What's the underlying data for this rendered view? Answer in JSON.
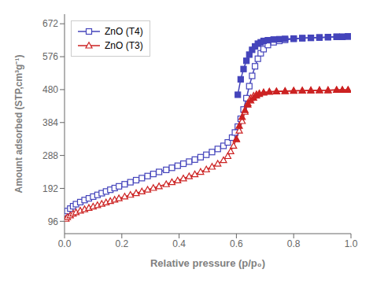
{
  "chart_data": {
    "type": "line",
    "xlabel": "Relative pressure (p/p₀)",
    "ylabel": "Amount adsorbed (STP,cm³g⁻¹)",
    "xlim": [
      0.0,
      1.0
    ],
    "ylim": [
      60,
      700
    ],
    "xticks": [
      {
        "value": 0.0,
        "label": "0.0"
      },
      0.2,
      0.4,
      0.6,
      0.8,
      {
        "value": 1.0,
        "label": "1.0"
      }
    ],
    "yticks": [
      96,
      192,
      288,
      384,
      480,
      576,
      672
    ],
    "grid": false,
    "legend": "upper left",
    "series": [
      {
        "name": "ZnO (T4)",
        "color": "#4444bb",
        "marker": "open_square",
        "line_style": "solid",
        "x": [
          0.005,
          0.01,
          0.02,
          0.03,
          0.04,
          0.055,
          0.07,
          0.085,
          0.1,
          0.115,
          0.13,
          0.145,
          0.16,
          0.175,
          0.19,
          0.21,
          0.23,
          0.25,
          0.27,
          0.29,
          0.31,
          0.33,
          0.355,
          0.375,
          0.395,
          0.415,
          0.435,
          0.455,
          0.475,
          0.495,
          0.515,
          0.535,
          0.555,
          0.57,
          0.585,
          0.595,
          0.605,
          0.615,
          0.625,
          0.635,
          0.645,
          0.655,
          0.665,
          0.675,
          0.685,
          0.695,
          0.71,
          0.73,
          0.75,
          0.77,
          0.8,
          0.83,
          0.86,
          0.89,
          0.92,
          0.95,
          0.97,
          0.99
        ],
        "values": [
          120,
          126,
          133,
          140,
          146,
          152,
          158,
          163,
          168,
          173,
          178,
          183,
          188,
          193,
          198,
          204,
          210,
          216,
          222,
          228,
          234,
          240,
          246,
          252,
          258,
          264,
          270,
          276,
          283,
          290,
          298,
          307,
          316,
          326,
          340,
          355,
          372,
          395,
          422,
          455,
          490,
          520,
          548,
          570,
          586,
          598,
          610,
          618,
          622,
          625,
          628,
          630,
          631,
          632,
          633,
          634,
          634,
          635
        ]
      },
      {
        "color": "#4444bb",
        "marker": "filled_square",
        "line_style": "solid",
        "x": [
          0.99,
          0.97,
          0.95,
          0.92,
          0.89,
          0.86,
          0.83,
          0.8,
          0.77,
          0.75,
          0.73,
          0.71,
          0.695,
          0.685,
          0.675,
          0.665,
          0.655,
          0.645,
          0.635,
          0.625,
          0.615,
          0.605
        ],
        "values": [
          635,
          634,
          634,
          633,
          632,
          631,
          630,
          629,
          628,
          627,
          626,
          624,
          622,
          618,
          614,
          606,
          596,
          582,
          564,
          540,
          510,
          465
        ]
      },
      {
        "name": "ZnO (T3)",
        "color": "#cc2222",
        "marker": "open_triangle",
        "line_style": "solid",
        "x": [
          0.005,
          0.01,
          0.02,
          0.03,
          0.04,
          0.055,
          0.07,
          0.085,
          0.1,
          0.115,
          0.13,
          0.145,
          0.16,
          0.175,
          0.19,
          0.21,
          0.23,
          0.25,
          0.27,
          0.29,
          0.31,
          0.33,
          0.355,
          0.375,
          0.395,
          0.415,
          0.435,
          0.455,
          0.475,
          0.495,
          0.515,
          0.535,
          0.555,
          0.57,
          0.58,
          0.59,
          0.6,
          0.61,
          0.62,
          0.63,
          0.64,
          0.65,
          0.66,
          0.67,
          0.68,
          0.695,
          0.715,
          0.74,
          0.77,
          0.8,
          0.83,
          0.86,
          0.89,
          0.92,
          0.95,
          0.97,
          0.99
        ],
        "values": [
          103,
          108,
          113,
          118,
          122,
          127,
          131,
          135,
          139,
          143,
          147,
          151,
          155,
          159,
          163,
          168,
          173,
          178,
          183,
          188,
          193,
          198,
          204,
          210,
          215,
          221,
          227,
          233,
          240,
          247,
          255,
          264,
          274,
          286,
          300,
          316,
          336,
          360,
          388,
          415,
          440,
          455,
          462,
          466,
          469,
          472,
          474,
          475,
          476,
          477,
          477,
          478,
          478,
          478,
          479,
          479,
          479
        ]
      },
      {
        "color": "#cc2222",
        "marker": "filled_triangle",
        "line_style": "solid",
        "x": [
          0.99,
          0.97,
          0.95,
          0.92,
          0.89,
          0.86,
          0.83,
          0.8,
          0.77,
          0.74,
          0.715,
          0.695,
          0.68,
          0.67,
          0.66,
          0.65,
          0.64,
          0.63,
          0.62,
          0.61,
          0.6
        ],
        "values": [
          479,
          479,
          479,
          478,
          478,
          477,
          477,
          476,
          475,
          474,
          473,
          471,
          467,
          462,
          456,
          448,
          436,
          420,
          400,
          374,
          335
        ]
      }
    ]
  }
}
